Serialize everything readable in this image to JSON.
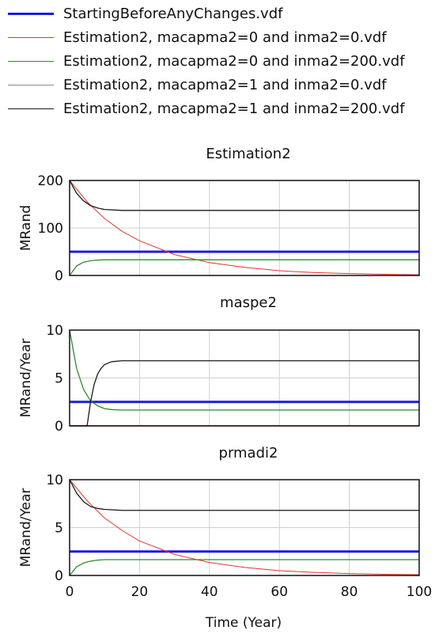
{
  "chart_data": {
    "type": "line",
    "xlabel": "Time (Year)",
    "xlim": [
      0,
      100
    ],
    "xticks": [
      "0",
      "20",
      "40",
      "60",
      "80",
      "100"
    ],
    "grid": true,
    "legend": [
      {
        "name": "StartingBeforeAnyChanges.vdf",
        "color": "#1c1cdf"
      },
      {
        "name": "Estimation2, macapma2=0 and inma2=0.vdf",
        "color": "#e8342d"
      },
      {
        "name": "Estimation2, macapma2=0 and inma2=200.vdf",
        "color": "#2e8b2e"
      },
      {
        "name": "Estimation2, macapma2=1 and inma2=0.vdf",
        "color": "#8a8a8a"
      },
      {
        "name": "Estimation2, macapma2=1 and inma2=200.vdf",
        "color": "#1a1a1a"
      }
    ],
    "panels": [
      {
        "title": "Estimation2",
        "ylabel": "MRand",
        "ylim": [
          0,
          200
        ],
        "yticks": [
          "0",
          "100",
          "200"
        ],
        "series": [
          {
            "color": "#1c1cdf",
            "width": 3,
            "x": [
              0,
              100
            ],
            "y": [
              50,
              50
            ]
          },
          {
            "color": "#e8342d",
            "width": 1,
            "x": [
              0,
              5,
              10,
              15,
              20,
              30,
              40,
              50,
              60,
              70,
              80,
              90,
              100
            ],
            "y": [
              200,
              155,
              120,
              93,
              73,
              44,
              27,
              17,
              10,
              6,
              4,
              2.5,
              1.5
            ]
          },
          {
            "color": "#2e8b2e",
            "width": 1.3,
            "x": [
              0,
              2,
              4,
              6,
              8,
              10,
              15,
              20,
              100
            ],
            "y": [
              0,
              20,
              28,
              31,
              32.5,
              33,
              33,
              33,
              33
            ]
          },
          {
            "color": "#1a1a1a",
            "width": 1.3,
            "x": [
              0,
              2,
              4,
              6,
              8,
              10,
              15,
              20,
              100
            ],
            "y": [
              200,
              173,
              157,
              147,
              142,
              139,
              137,
              137,
              137
            ]
          }
        ]
      },
      {
        "title": "maspe2",
        "ylabel": "MRand/Year",
        "ylim": [
          0,
          10
        ],
        "yticks": [
          "0",
          "5",
          "10"
        ],
        "series": [
          {
            "color": "#1c1cdf",
            "width": 3,
            "x": [
              0,
              100
            ],
            "y": [
              2.5,
              2.5
            ]
          },
          {
            "color": "#e8342d",
            "width": 1.5,
            "x": [
              0,
              100
            ],
            "y": [
              0,
              0
            ]
          },
          {
            "color": "#2e8b2e",
            "width": 1.3,
            "x": [
              0,
              2,
              4,
              6,
              8,
              10,
              12,
              15,
              20,
              100
            ],
            "y": [
              10,
              6,
              3.8,
              2.6,
              2.1,
              1.8,
              1.7,
              1.65,
              1.65,
              1.65
            ]
          },
          {
            "color": "#1a1a1a",
            "width": 1.3,
            "x": [
              0,
              5,
              6,
              7,
              8,
              9,
              10,
              12,
              15,
              20,
              100
            ],
            "y": [
              0,
              0,
              2.5,
              4.3,
              5.4,
              6.0,
              6.4,
              6.7,
              6.8,
              6.8,
              6.8
            ]
          }
        ]
      },
      {
        "title": "prmadi2",
        "ylabel": "MRand/Year",
        "ylim": [
          0,
          10
        ],
        "yticks": [
          "0",
          "5",
          "10"
        ],
        "series": [
          {
            "color": "#1c1cdf",
            "width": 3,
            "x": [
              0,
              100
            ],
            "y": [
              2.5,
              2.5
            ]
          },
          {
            "color": "#e8342d",
            "width": 1,
            "x": [
              0,
              5,
              10,
              15,
              20,
              30,
              40,
              50,
              60,
              70,
              80,
              90,
              100
            ],
            "y": [
              10,
              7.8,
              6.0,
              4.7,
              3.6,
              2.2,
              1.35,
              0.85,
              0.5,
              0.32,
              0.2,
              0.12,
              0.08
            ]
          },
          {
            "color": "#2e8b2e",
            "width": 1.3,
            "x": [
              0,
              2,
              4,
              6,
              8,
              10,
              15,
              20,
              100
            ],
            "y": [
              0,
              0.9,
              1.3,
              1.5,
              1.6,
              1.65,
              1.65,
              1.65,
              1.65
            ]
          },
          {
            "color": "#1a1a1a",
            "width": 1.3,
            "x": [
              0,
              2,
              4,
              6,
              8,
              10,
              15,
              20,
              100
            ],
            "y": [
              10,
              8.6,
              7.7,
              7.2,
              7.0,
              6.9,
              6.8,
              6.8,
              6.8
            ]
          }
        ]
      }
    ]
  }
}
